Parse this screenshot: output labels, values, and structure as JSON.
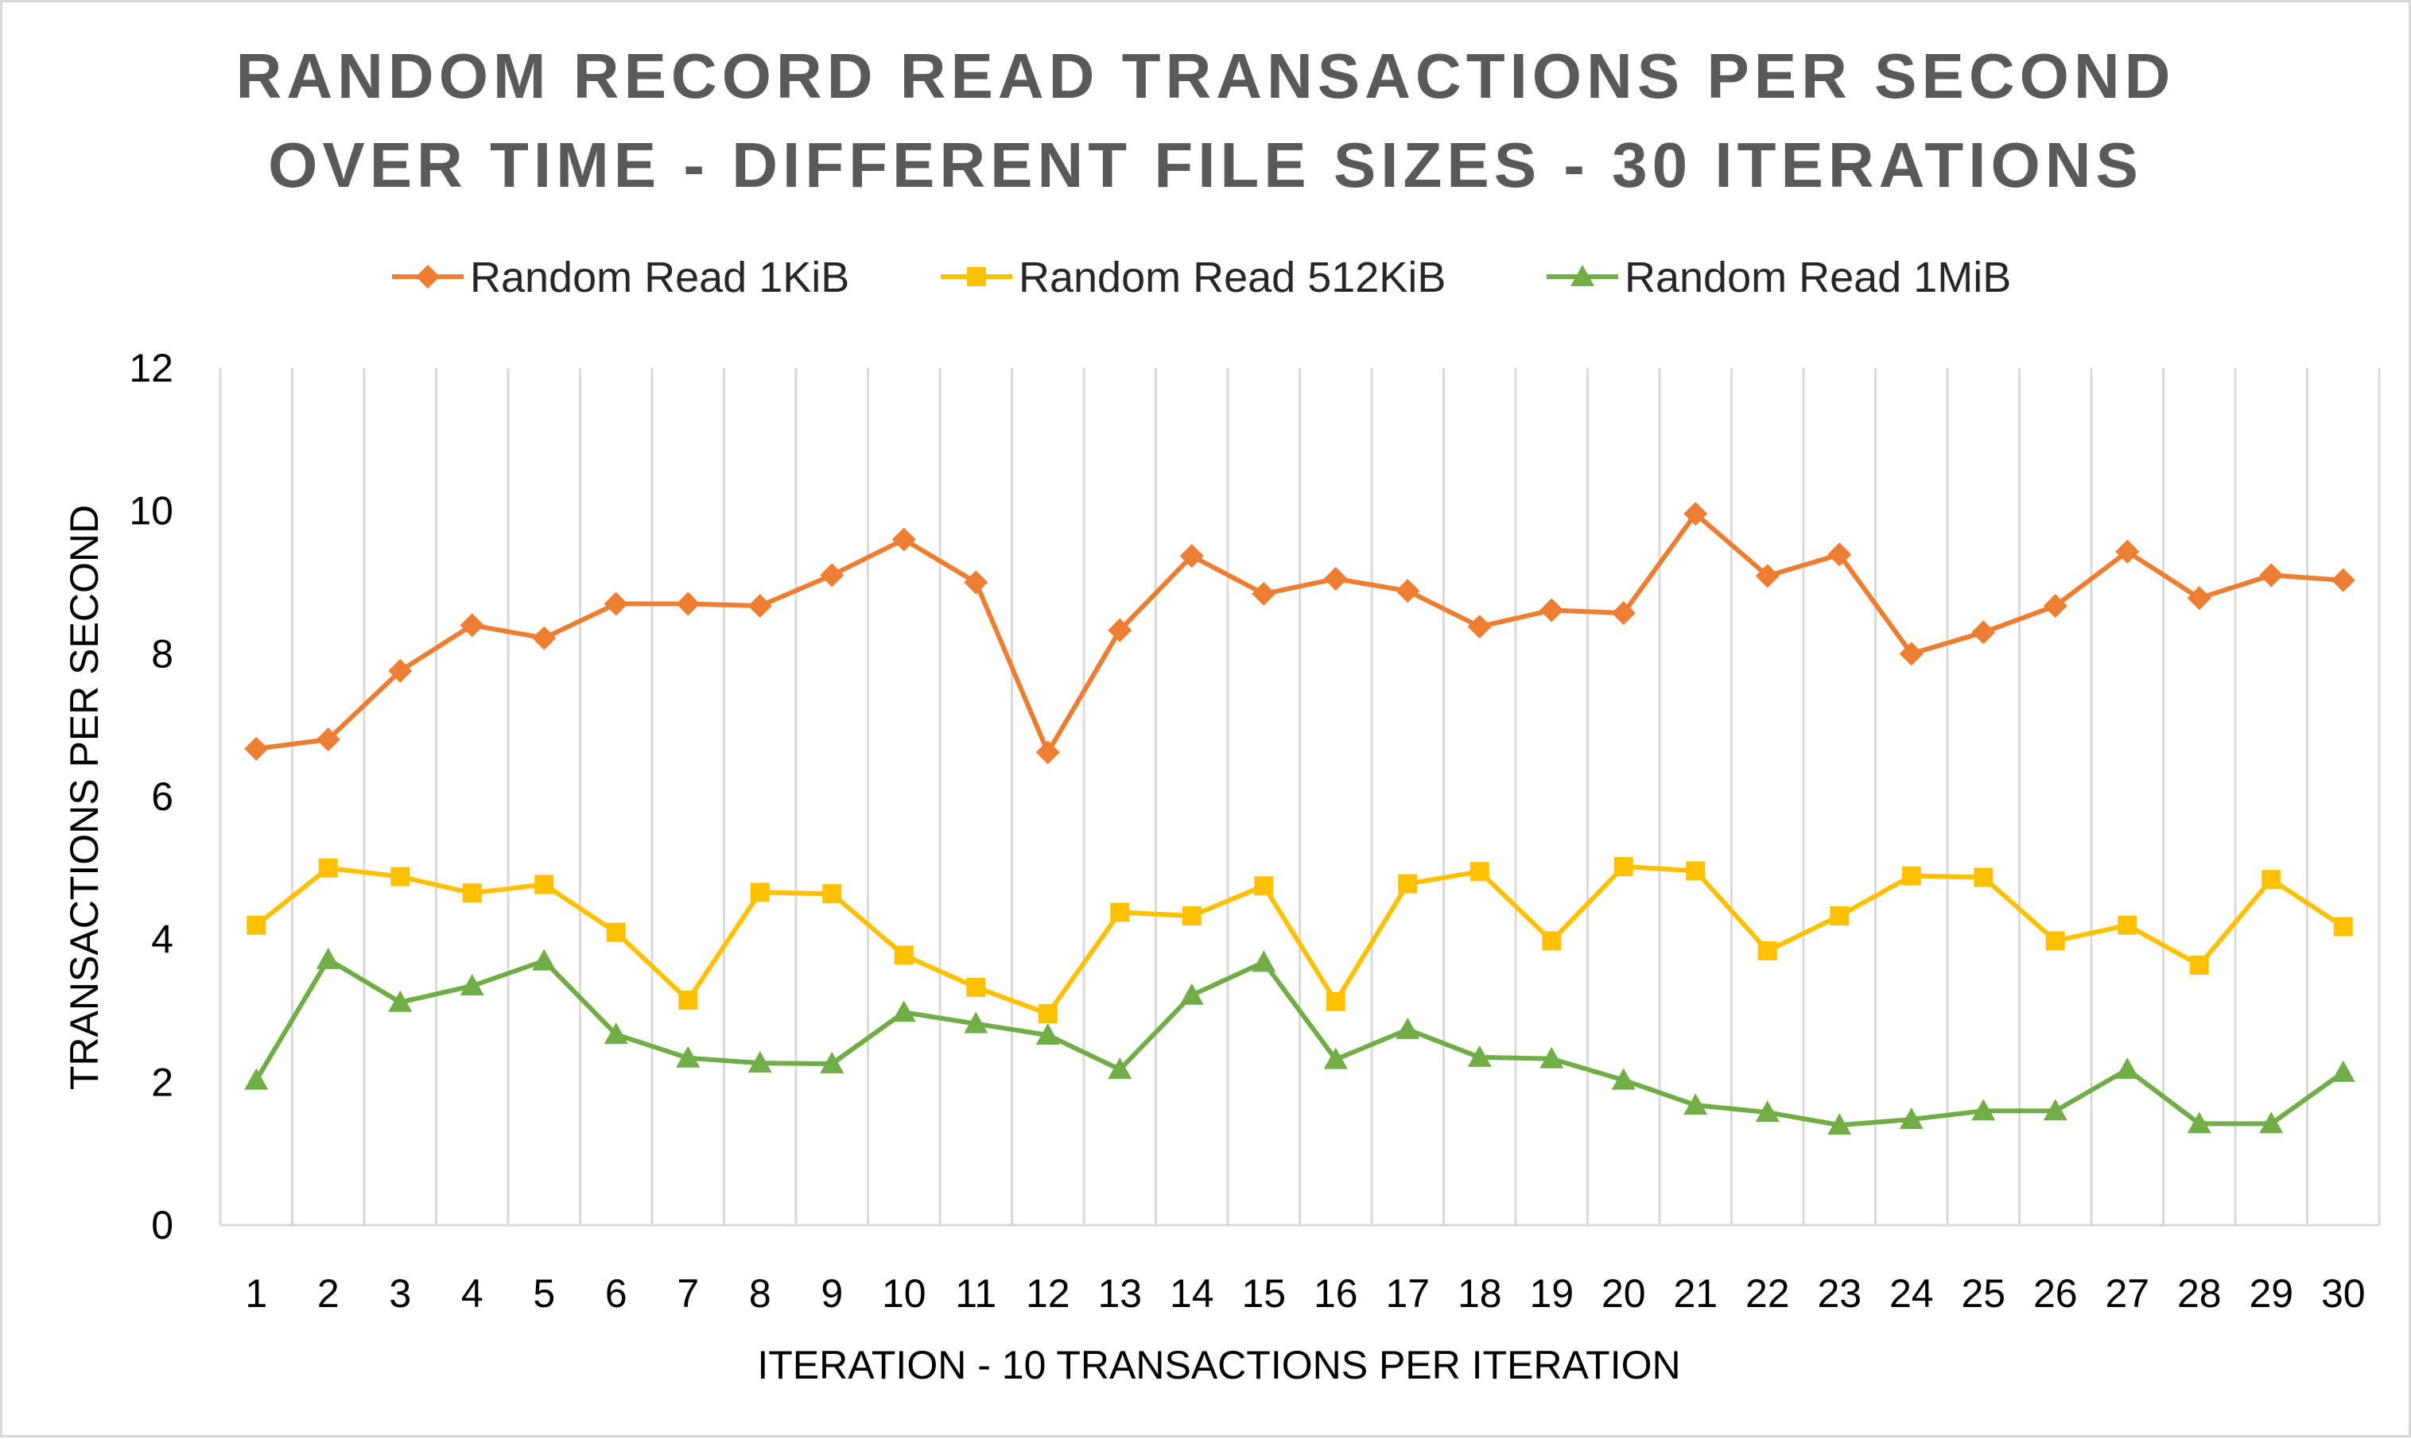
{
  "chart_data": {
    "type": "line",
    "title_lines": [
      "RANDOM RECORD READ TRANSACTIONS PER SECOND",
      "OVER TIME - DIFFERENT FILE SIZES - 30 ITERATIONS"
    ],
    "xlabel": "ITERATION - 10 TRANSACTIONS PER ITERATION",
    "ylabel": "TRANSACTIONS PER SECOND",
    "categories": [
      "1",
      "2",
      "3",
      "4",
      "5",
      "6",
      "7",
      "8",
      "9",
      "10",
      "11",
      "12",
      "13",
      "14",
      "15",
      "16",
      "17",
      "18",
      "19",
      "20",
      "21",
      "22",
      "23",
      "24",
      "25",
      "26",
      "27",
      "28",
      "29",
      "30"
    ],
    "ylim": [
      0,
      12
    ],
    "yticks": [
      "0",
      "2",
      "4",
      "6",
      "8",
      "10",
      "12"
    ],
    "grid": "vertical",
    "legend_position": "top",
    "series": [
      {
        "name": "Random Read 1KiB",
        "color": "#ED7D31",
        "marker": "diamond",
        "values": [
          6.67,
          6.8,
          7.76,
          8.4,
          8.22,
          8.7,
          8.7,
          8.67,
          9.1,
          9.6,
          9.0,
          6.62,
          8.33,
          9.37,
          8.84,
          9.05,
          8.88,
          8.38,
          8.61,
          8.57,
          9.96,
          9.09,
          9.39,
          8.0,
          8.3,
          8.67,
          9.43,
          8.78,
          9.1,
          9.03
        ]
      },
      {
        "name": "Random Read 512KiB",
        "color": "#FFC000",
        "marker": "square",
        "values": [
          4.2,
          5.0,
          4.88,
          4.65,
          4.77,
          4.1,
          3.15,
          4.66,
          4.64,
          3.78,
          3.33,
          2.96,
          4.38,
          4.33,
          4.75,
          3.13,
          4.78,
          4.95,
          3.98,
          5.02,
          4.96,
          3.84,
          4.33,
          4.89,
          4.87,
          3.98,
          4.2,
          3.64,
          4.84,
          4.18
        ]
      },
      {
        "name": "Random Read 1MiB",
        "color": "#70AD47",
        "marker": "triangle",
        "values": [
          2.03,
          3.72,
          3.12,
          3.35,
          3.7,
          2.67,
          2.34,
          2.27,
          2.26,
          2.98,
          2.82,
          2.66,
          2.18,
          3.22,
          3.68,
          2.32,
          2.74,
          2.35,
          2.33,
          2.03,
          1.68,
          1.58,
          1.4,
          1.48,
          1.6,
          1.6,
          2.18,
          1.42,
          1.42,
          2.14
        ]
      }
    ]
  }
}
